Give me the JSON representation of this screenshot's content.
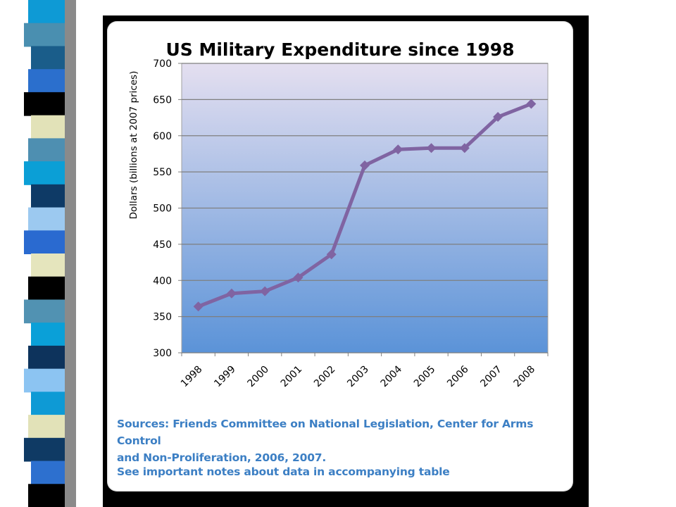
{
  "chart_data": {
    "type": "line",
    "title": "US Military Expenditure since 1998",
    "xlabel": "",
    "ylabel": "Dollars (billions at 2007 prices)",
    "categories": [
      "1998",
      "1999",
      "2000",
      "2001",
      "2002",
      "2003",
      "2004",
      "2005",
      "2006",
      "2007",
      "2008"
    ],
    "series": [
      {
        "values": [
          364,
          382,
          385,
          404,
          436,
          559,
          581,
          583,
          583,
          626,
          644
        ]
      }
    ],
    "ylim": [
      300,
      700
    ],
    "yticks": [
      300,
      350,
      400,
      450,
      500,
      550,
      600,
      650,
      700
    ],
    "grid": true,
    "line_color": "#8064a2",
    "plot_gradient": [
      "#e4dff0",
      "#5b93d8"
    ]
  },
  "notes": {
    "sources_line1": "Sources: Friends Committee on National Legislation, Center for Arms Control",
    "sources_line2": "and Non-Proliferation, 2006, 2007.",
    "table_note": "See important notes about data in accompanying table"
  },
  "decor": {
    "strip_colors": [
      "#0e9ad5",
      "#4a8fb0",
      "#1a5d8a",
      "#2b6fcd",
      "#000000",
      "#e2e2b8",
      "#4e8fb1",
      "#0b9fd6",
      "#0e3a66",
      "#9cc9f0",
      "#2a6ad0",
      "#e5e5bd",
      "#000000",
      "#5192b2",
      "#0aa0d8",
      "#0d335c",
      "#8cc4f2",
      "#0e9ad5",
      "#e2e2b8",
      "#0f3a64",
      "#2d70cf",
      "#000000"
    ]
  }
}
